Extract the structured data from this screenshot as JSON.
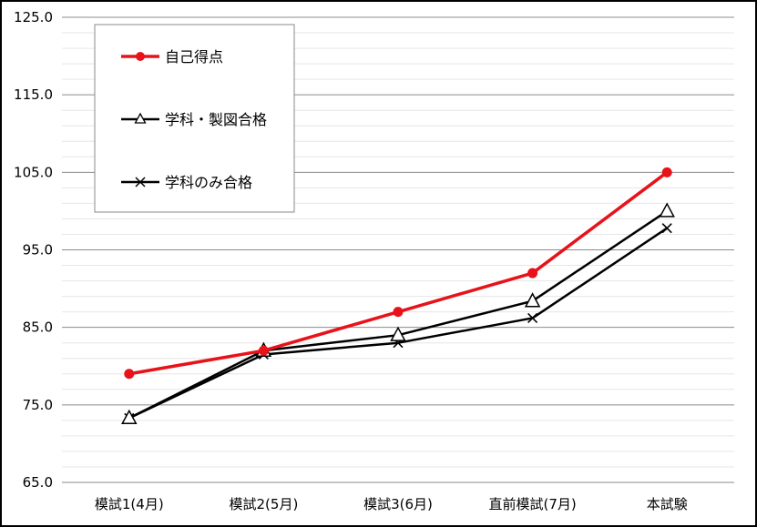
{
  "chart_data": {
    "type": "line",
    "categories": [
      "模試1(4月)",
      "模試2(5月)",
      "模試3(6月)",
      "直前模試(7月)",
      "本試験"
    ],
    "ylim": [
      65.0,
      125.0
    ],
    "yticks": [
      "65.0",
      "75.0",
      "85.0",
      "95.0",
      "105.0",
      "115.0",
      "125.0"
    ],
    "ytick_values": [
      65,
      75,
      85,
      95,
      105,
      115,
      125
    ],
    "minor_grid_step": 2,
    "grid": true,
    "legend_position": "top-left",
    "series": [
      {
        "name": "自己得点",
        "values": [
          79,
          82,
          87,
          92,
          105
        ],
        "color": "#e8121a",
        "marker": "circle"
      },
      {
        "name": "学科・製図合格",
        "values": [
          73.3,
          82,
          84,
          88.4,
          100
        ],
        "color": "#000000",
        "marker": "triangle"
      },
      {
        "name": "学科のみ合格",
        "values": [
          73.3,
          81.5,
          83,
          86.2,
          97.8
        ],
        "color": "#000000",
        "marker": "x"
      }
    ]
  }
}
